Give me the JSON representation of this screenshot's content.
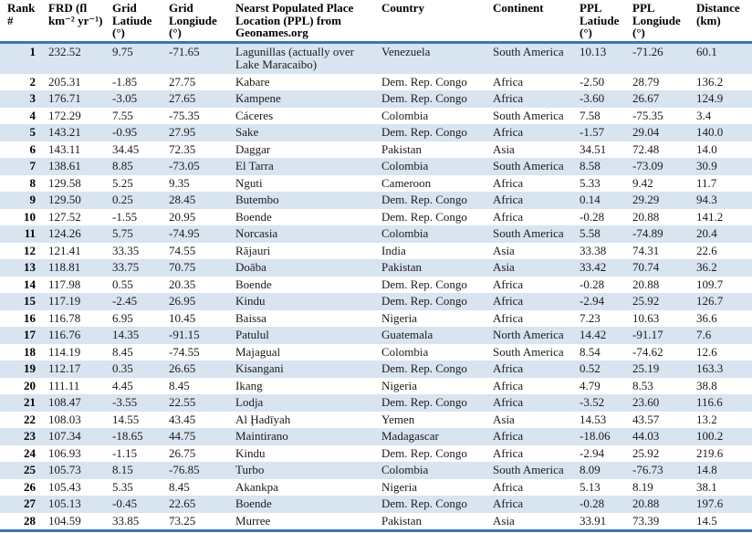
{
  "colors": {
    "rule_blue": "#3E74B4",
    "band_blue": "#D9E4F1",
    "background": "#FFFFFF",
    "text": "#000000"
  },
  "table": {
    "description": "Ranked table of lightning flash rate density (FRD) hotspot grid cells with nearest populated places",
    "columns": [
      "Rank #",
      "FRD (fl km⁻² yr⁻¹)",
      "Grid Latiude (°)",
      "Grid Longiude (°)",
      "Nearst Populated Place Location (PPL) from Geonames.org",
      "Country",
      "Continent",
      "PPL Latiude (°)",
      "PPL Longiude (°)",
      "Distance (km)"
    ],
    "rows": [
      [
        "1",
        "232.52",
        "9.75",
        "-71.65",
        "Lagunillas (actually over Lake Maracaibo)",
        "Venezuela",
        "South America",
        "10.13",
        "-71.26",
        "60.1"
      ],
      [
        "2",
        "205.31",
        "-1.85",
        "27.75",
        "Kabare",
        "Dem. Rep. Congo",
        "Africa",
        "-2.50",
        "28.79",
        "136.2"
      ],
      [
        "3",
        "176.71",
        "-3.05",
        "27.65",
        "Kampene",
        "Dem. Rep. Congo",
        "Africa",
        "-3.60",
        "26.67",
        "124.9"
      ],
      [
        "4",
        "172.29",
        "7.55",
        "-75.35",
        "Cáceres",
        "Colombia",
        "South America",
        "7.58",
        "-75.35",
        "3.4"
      ],
      [
        "5",
        "143.21",
        "-0.95",
        "27.95",
        "Sake",
        "Dem. Rep. Congo",
        "Africa",
        "-1.57",
        "29.04",
        "140.0"
      ],
      [
        "6",
        "143.11",
        "34.45",
        "72.35",
        "Daggar",
        "Pakistan",
        "Asia",
        "34.51",
        "72.48",
        "14.0"
      ],
      [
        "7",
        "138.61",
        "8.85",
        "-73.05",
        "El Tarra",
        "Colombia",
        "South America",
        "8.58",
        "-73.09",
        "30.9"
      ],
      [
        "8",
        "129.58",
        "5.25",
        "9.35",
        "Nguti",
        "Cameroon",
        "Africa",
        "5.33",
        "9.42",
        "11.7"
      ],
      [
        "9",
        "129.50",
        "0.25",
        "28.45",
        "Butembo",
        "Dem. Rep. Congo",
        "Africa",
        "0.14",
        "29.29",
        "94.3"
      ],
      [
        "10",
        "127.52",
        "-1.55",
        "20.95",
        "Boende",
        "Dem. Rep. Congo",
        "Africa",
        "-0.28",
        "20.88",
        "141.2"
      ],
      [
        "11",
        "124.26",
        "5.75",
        "-74.95",
        "Norcasia",
        "Colombia",
        "South America",
        "5.58",
        "-74.89",
        "20.4"
      ],
      [
        "12",
        "121.41",
        "33.35",
        "74.55",
        "Rājauri",
        "India",
        "Asia",
        "33.38",
        "74.31",
        "22.6"
      ],
      [
        "13",
        "118.81",
        "33.75",
        "70.75",
        "Doāba",
        "Pakistan",
        "Asia",
        "33.42",
        "70.74",
        "36.2"
      ],
      [
        "14",
        "117.98",
        "0.55",
        "20.35",
        "Boende",
        "Dem. Rep. Congo",
        "Africa",
        "-0.28",
        "20.88",
        "109.7"
      ],
      [
        "15",
        "117.19",
        "-2.45",
        "26.95",
        "Kindu",
        "Dem. Rep. Congo",
        "Africa",
        "-2.94",
        "25.92",
        "126.7"
      ],
      [
        "16",
        "116.78",
        "6.95",
        "10.45",
        "Baissa",
        "Nigeria",
        "Africa",
        "7.23",
        "10.63",
        "36.6"
      ],
      [
        "17",
        "116.76",
        "14.35",
        "-91.15",
        "Patulul",
        "Guatemala",
        "North America",
        "14.42",
        "-91.17",
        "7.6"
      ],
      [
        "18",
        "114.19",
        "8.45",
        "-74.55",
        "Majagual",
        "Colombia",
        "South America",
        "8.54",
        "-74.62",
        "12.6"
      ],
      [
        "19",
        "112.17",
        "0.35",
        "26.65",
        "Kisangani",
        "Dem. Rep. Congo",
        "Africa",
        "0.52",
        "25.19",
        "163.3"
      ],
      [
        "20",
        "111.11",
        "4.45",
        "8.45",
        "Ikang",
        "Nigeria",
        "Africa",
        "4.79",
        "8.53",
        "38.8"
      ],
      [
        "21",
        "108.47",
        "-3.55",
        "22.55",
        "Lodja",
        "Dem. Rep. Congo",
        "Africa",
        "-3.52",
        "23.60",
        "116.6"
      ],
      [
        "22",
        "108.03",
        "14.55",
        "43.45",
        "Al Ḩadīyah",
        "Yemen",
        "Asia",
        "14.53",
        "43.57",
        "13.2"
      ],
      [
        "23",
        "107.34",
        "-18.65",
        "44.75",
        "Maintirano",
        "Madagascar",
        "Africa",
        "-18.06",
        "44.03",
        "100.2"
      ],
      [
        "24",
        "106.93",
        "-1.15",
        "26.75",
        "Kindu",
        "Dem. Rep. Congo",
        "Africa",
        "-2.94",
        "25.92",
        "219.6"
      ],
      [
        "25",
        "105.73",
        "8.15",
        "-76.85",
        "Turbo",
        "Colombia",
        "South America",
        "8.09",
        "-76.73",
        "14.8"
      ],
      [
        "26",
        "105.43",
        "5.35",
        "8.45",
        "Akankpa",
        "Nigeria",
        "Africa",
        "5.13",
        "8.19",
        "38.1"
      ],
      [
        "27",
        "105.13",
        "-0.45",
        "22.65",
        "Boende",
        "Dem. Rep. Congo",
        "Africa",
        "-0.28",
        "20.88",
        "197.6"
      ],
      [
        "28",
        "104.59",
        "33.85",
        "73.25",
        "Murree",
        "Pakistan",
        "Asia",
        "33.91",
        "73.39",
        "14.5"
      ]
    ]
  }
}
